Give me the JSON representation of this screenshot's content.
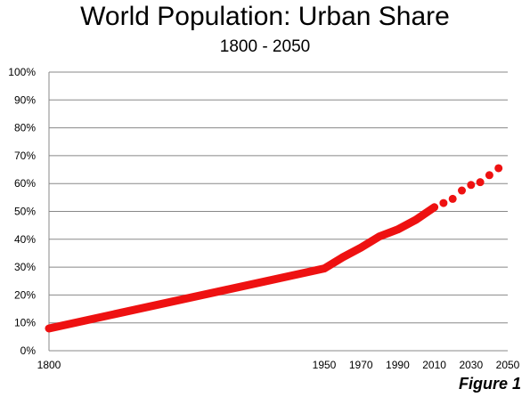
{
  "chart_data": {
    "type": "line",
    "title": "World Population: Urban Share",
    "subtitle": "1800 - 2050",
    "xlabel": "",
    "ylabel": "",
    "xlim": [
      1800,
      2050
    ],
    "ylim": [
      0,
      100
    ],
    "y_tick_values": [
      0,
      10,
      20,
      30,
      40,
      50,
      60,
      70,
      80,
      90,
      100
    ],
    "y_tick_labels": [
      "0%",
      "10%",
      "20%",
      "30%",
      "40%",
      "50%",
      "60%",
      "70%",
      "80%",
      "90%",
      "100%"
    ],
    "x_tick_values": [
      1800,
      1950,
      1970,
      1990,
      2010,
      2030,
      2050
    ],
    "x_tick_labels": [
      "1800",
      "1950",
      "1970",
      "1990",
      "2010",
      "2030",
      "2050"
    ],
    "grid": true,
    "series": [
      {
        "style": "solid",
        "color": "#ee1111",
        "x": [
          1800,
          1950,
          1960,
          1970,
          1980,
          1990,
          2000,
          2010
        ],
        "y": [
          8,
          29.5,
          33.5,
          37,
          41,
          43.5,
          47,
          51.5
        ]
      },
      {
        "style": "dotted",
        "color": "#ee1111",
        "x": [
          2010,
          2015,
          2020,
          2025,
          2030,
          2035,
          2040,
          2045
        ],
        "y": [
          51.5,
          53,
          54.5,
          57.5,
          59.5,
          60.5,
          63,
          65.5
        ]
      }
    ],
    "caption": "Figure 1"
  }
}
